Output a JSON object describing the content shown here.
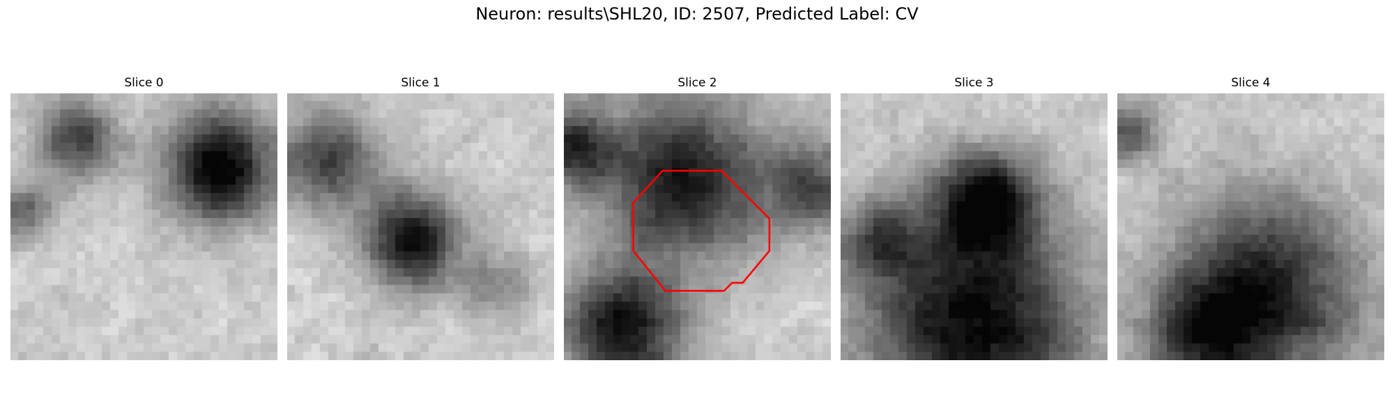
{
  "figure": {
    "title": "Neuron: results\\SHL20, ID: 2507, Predicted Label: CV",
    "contour_color": "#ff0000",
    "colormap": "gray",
    "panels": [
      {
        "title": "Slice 0",
        "seed": 11,
        "dark_blobs": [
          [
            0.78,
            0.28,
            0.2,
            1.0
          ],
          [
            0.25,
            0.18,
            0.14,
            0.7
          ],
          [
            0.05,
            0.45,
            0.1,
            0.55
          ]
        ],
        "has_contour": false
      },
      {
        "title": "Slice 1",
        "seed": 23,
        "dark_blobs": [
          [
            0.47,
            0.55,
            0.17,
            0.95
          ],
          [
            0.15,
            0.25,
            0.18,
            0.65
          ],
          [
            0.78,
            0.72,
            0.12,
            0.35
          ]
        ],
        "has_contour": false
      },
      {
        "title": "Slice 2",
        "seed": 37,
        "dark_blobs": [
          [
            0.45,
            0.32,
            0.3,
            0.85
          ],
          [
            0.22,
            0.88,
            0.22,
            0.9
          ],
          [
            0.92,
            0.35,
            0.16,
            0.6
          ],
          [
            0.05,
            0.2,
            0.14,
            0.7
          ]
        ],
        "has_contour": true
      },
      {
        "title": "Slice 3",
        "seed": 51,
        "dark_blobs": [
          [
            0.5,
            0.85,
            0.4,
            0.95
          ],
          [
            0.55,
            0.4,
            0.18,
            0.85
          ],
          [
            0.15,
            0.55,
            0.15,
            0.5
          ]
        ],
        "has_contour": false
      },
      {
        "title": "Slice 4",
        "seed": 67,
        "dark_blobs": [
          [
            0.55,
            0.75,
            0.35,
            0.85
          ],
          [
            0.05,
            0.15,
            0.1,
            0.6
          ],
          [
            0.3,
            0.9,
            0.2,
            0.5
          ]
        ],
        "has_contour": false
      }
    ],
    "contour_polygon_frac": [
      [
        0.37,
        0.29
      ],
      [
        0.59,
        0.29
      ],
      [
        0.77,
        0.47
      ],
      [
        0.77,
        0.59
      ],
      [
        0.67,
        0.71
      ],
      [
        0.63,
        0.71
      ],
      [
        0.6,
        0.74
      ],
      [
        0.38,
        0.74
      ],
      [
        0.26,
        0.59
      ],
      [
        0.26,
        0.41
      ]
    ]
  }
}
